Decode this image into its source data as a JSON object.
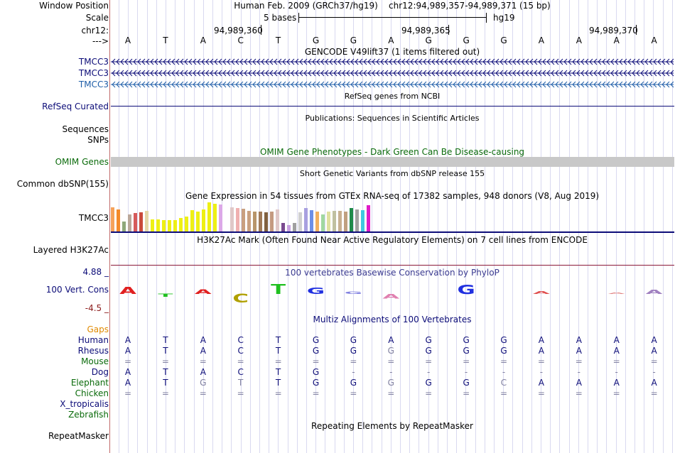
{
  "labels": {
    "window_position": "Window Position",
    "scale": "Scale",
    "chrom": "chr12:",
    "strand_arrow": "--->",
    "gencode_1": "TMCC3",
    "gencode_2": "TMCC3",
    "gencode_3": "TMCC3",
    "refseq": "RefSeq Curated",
    "sequences": "Sequences",
    "snps": "SNPs",
    "omim": "OMIM Genes",
    "dbsnp": "Common dbSNP(155)",
    "gtex": "TMCC3",
    "h3k27ac": "Layered H3K27Ac",
    "phylop_max": "4.88 _",
    "cons": "100 Vert. Cons",
    "phylop_min": "-4.5 _",
    "gaps": "Gaps",
    "repeatmasker": "RepeatMasker"
  },
  "header": {
    "assembly": "Human Feb. 2009 (GRCh37/hg19)",
    "position": "chr12:94,989,357-94,989,371 (15 bp)",
    "scale_text": "5 bases",
    "scale_assembly": "hg19",
    "coords": [
      "94,989,360",
      "94,989,365",
      "94,989,370"
    ]
  },
  "reference_bases": [
    "A",
    "T",
    "A",
    "C",
    "T",
    "G",
    "G",
    "A",
    "G",
    "G",
    "G",
    "A",
    "A",
    "A",
    "A"
  ],
  "tracks": {
    "gencode": "GENCODE V49lift37 (1 items filtered out)",
    "refseq": "RefSeq genes from NCBI",
    "publications": "Publications: Sequences in Scientific Articles",
    "omim": "OMIM Gene Phenotypes - Dark Green Can Be Disease-causing",
    "dbsnp": "Short Genetic Variants from dbSNP release 155",
    "gtex": "Gene Expression in 54 tissues from GTEx RNA-seq of 17382 samples, 948 donors (V8, Aug 2019)",
    "h3k27ac": "H3K27Ac Mark (Often Found Near Active Regulatory Elements) on 7 cell lines from ENCODE",
    "phylop": "100 vertebrates Basewise Conservation by PhyloP",
    "multiz": "Multiz Alignments of 100 Vertebrates",
    "repeatmasker": "Repeating Elements by RepeatMasker"
  },
  "gtex_bars": [
    {
      "h": 0.78,
      "c": "#f5a25a"
    },
    {
      "h": 0.72,
      "c": "#f48a2a"
    },
    {
      "h": 0.32,
      "c": "#8fa87a"
    },
    {
      "h": 0.55,
      "c": "#bba89a"
    },
    {
      "h": 0.6,
      "c": "#d65a5a"
    },
    {
      "h": 0.62,
      "c": "#c94a3a"
    },
    {
      "h": 0.68,
      "c": "#e4d6a6"
    },
    {
      "h": 0.4,
      "c": "#eef014"
    },
    {
      "h": 0.4,
      "c": "#eef014"
    },
    {
      "h": 0.38,
      "c": "#eef014"
    },
    {
      "h": 0.37,
      "c": "#eef014"
    },
    {
      "h": 0.37,
      "c": "#eef014"
    },
    {
      "h": 0.45,
      "c": "#eef014"
    },
    {
      "h": 0.48,
      "c": "#eef014"
    },
    {
      "h": 0.7,
      "c": "#eef014"
    },
    {
      "h": 0.66,
      "c": "#eef014"
    },
    {
      "h": 0.72,
      "c": "#eef014"
    },
    {
      "h": 0.95,
      "c": "#eef014"
    },
    {
      "h": 0.9,
      "c": "#eef014"
    },
    {
      "h": 0.88,
      "c": "#dca8e8"
    },
    {
      "h": 0.0,
      "c": "#ffffff"
    },
    {
      "h": 0.8,
      "c": "#e0c8c8"
    },
    {
      "h": 0.76,
      "c": "#f0b0b0"
    },
    {
      "h": 0.74,
      "c": "#c9a080"
    },
    {
      "h": 0.68,
      "c": "#c9a080"
    },
    {
      "h": 0.66,
      "c": "#b8956a"
    },
    {
      "h": 0.66,
      "c": "#a07a58"
    },
    {
      "h": 0.62,
      "c": "#806040"
    },
    {
      "h": 0.64,
      "c": "#c49a80"
    },
    {
      "h": 0.72,
      "c": "#e0c8c8"
    },
    {
      "h": 0.28,
      "c": "#7a4a90"
    },
    {
      "h": 0.22,
      "c": "#c8a0e0"
    },
    {
      "h": 0.28,
      "c": "#a0a0a0"
    },
    {
      "h": 0.62,
      "c": "#d0d0d0"
    },
    {
      "h": 0.76,
      "c": "#a8a0e0"
    },
    {
      "h": 0.7,
      "c": "#6b8fe8"
    },
    {
      "h": 0.66,
      "c": "#f0b060"
    },
    {
      "h": 0.55,
      "c": "#a0d8a0"
    },
    {
      "h": 0.64,
      "c": "#e0e0a0"
    },
    {
      "h": 0.68,
      "c": "#c0c0a0"
    },
    {
      "h": 0.68,
      "c": "#c8b090"
    },
    {
      "h": 0.64,
      "c": "#c0a080"
    },
    {
      "h": 0.76,
      "c": "#1f8a4a"
    },
    {
      "h": 0.72,
      "c": "#a0a0a0"
    },
    {
      "h": 0.7,
      "c": "#40c8e0"
    },
    {
      "h": 0.86,
      "c": "#e01ac8"
    }
  ],
  "phylop": [
    {
      "base": "A",
      "h": 0.7,
      "c": "#e02020",
      "dir": "up"
    },
    {
      "base": "T",
      "h": 0.3,
      "c": "#20c020",
      "dir": "down"
    },
    {
      "base": "A",
      "h": 0.45,
      "c": "#e02020",
      "dir": "up"
    },
    {
      "base": "C",
      "h": 0.85,
      "c": "#b0a000",
      "dir": "down"
    },
    {
      "base": "T",
      "h": 1.0,
      "c": "#20c020",
      "dir": "up"
    },
    {
      "base": "G",
      "h": 0.65,
      "c": "#2030e0",
      "dir": "up"
    },
    {
      "base": "G",
      "h": 0.2,
      "c": "#8080e0",
      "dir": "up"
    },
    {
      "base": "A",
      "h": 0.45,
      "c": "#e080b0",
      "dir": "down"
    },
    {
      "base": "G",
      "h": 0.0,
      "c": "#ffffff",
      "dir": "up"
    },
    {
      "base": "G",
      "h": 0.9,
      "c": "#2030e0",
      "dir": "up"
    },
    {
      "base": "G",
      "h": 0.0,
      "c": "#ffffff",
      "dir": "up"
    },
    {
      "base": "A",
      "h": 0.25,
      "c": "#e05050",
      "dir": "up"
    },
    {
      "base": "A",
      "h": 0.0,
      "c": "#ffffff",
      "dir": "up"
    },
    {
      "base": "A",
      "h": 0.15,
      "c": "#e08080",
      "dir": "up"
    },
    {
      "base": "A",
      "h": 0.4,
      "c": "#a080c0",
      "dir": "up"
    }
  ],
  "species": [
    {
      "name": "Human",
      "row": [
        "A",
        "T",
        "A",
        "C",
        "T",
        "G",
        "G",
        "A",
        "G",
        "G",
        "G",
        "A",
        "A",
        "A",
        "A"
      ]
    },
    {
      "name": "Rhesus",
      "row": [
        "A",
        "T",
        "A",
        "C",
        "T",
        "G",
        "G",
        "G",
        "G",
        "G",
        "G",
        "A",
        "A",
        "A",
        "A"
      ]
    },
    {
      "name": "Mouse",
      "row": [
        "=",
        "=",
        "=",
        "=",
        "=",
        "=",
        "=",
        "=",
        "=",
        "=",
        "=",
        "=",
        "=",
        "=",
        "="
      ]
    },
    {
      "name": "Dog",
      "row": [
        "A",
        "T",
        "A",
        "C",
        "T",
        "G",
        "-",
        "-",
        "-",
        "-",
        "-",
        "-",
        "-",
        "-",
        "-"
      ]
    },
    {
      "name": "Elephant",
      "row": [
        "A",
        "T",
        "G",
        "T",
        "T",
        "G",
        "G",
        "G",
        "G",
        "G",
        "C",
        "A",
        "A",
        "A",
        "A"
      ]
    },
    {
      "name": "Chicken",
      "row": [
        "=",
        "=",
        "=",
        "=",
        "=",
        "=",
        "=",
        "=",
        "=",
        "=",
        "=",
        "=",
        "=",
        "=",
        "="
      ]
    },
    {
      "name": "X_tropicalis",
      "row": [
        "",
        "",
        "",
        "",
        "",
        "",
        "",
        "",
        "",
        "",
        "",
        "",
        "",
        "",
        ""
      ]
    },
    {
      "name": "Zebrafish",
      "row": [
        "",
        "",
        "",
        "",
        "",
        "",
        "",
        "",
        "",
        "",
        "",
        "",
        "",
        "",
        ""
      ]
    }
  ],
  "alignment_colors": {
    "match": "#0c0c78",
    "mismatch": "#8080a0",
    "gap": "#8080a0"
  }
}
